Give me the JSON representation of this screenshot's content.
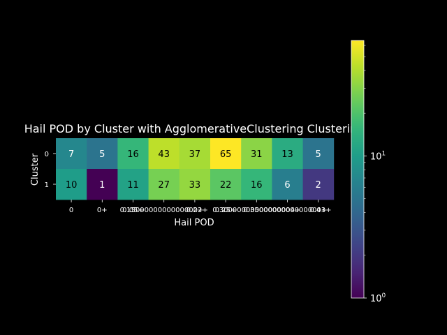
{
  "chart_data": {
    "type": "heatmap",
    "title": "Hail POD by Cluster with AgglomerativeClustering Clustering",
    "xlabel": "Hail POD",
    "ylabel": "Cluster",
    "x_categories": [
      "0",
      "0+",
      "0.05+",
      "0.15+",
      "0.2+",
      "0.25+",
      "0.3+",
      "0.35+",
      "0.4+"
    ],
    "x_tick_labels": [
      "0",
      "0+",
      "0.05+",
      "0.15000000000000002+",
      "0.2+",
      "0.25+",
      "0.30000000000000004+",
      "0.35000000000000003+",
      "0.4+"
    ],
    "y_categories": [
      "0",
      "1"
    ],
    "values": [
      [
        7,
        5,
        16,
        43,
        37,
        65,
        31,
        13,
        5
      ],
      [
        10,
        1,
        11,
        27,
        33,
        22,
        16,
        6,
        2
      ]
    ],
    "colorscale": "viridis",
    "color_scale_type": "log",
    "colorbar": {
      "range": [
        1,
        65
      ],
      "tick_labels": [
        "10^0",
        "10^1"
      ]
    },
    "grid": false
  }
}
